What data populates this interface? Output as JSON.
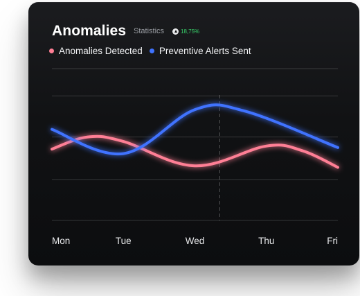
{
  "card": {
    "title": "Anomalies",
    "subtitle": "Statistics",
    "badge": {
      "icon": "trend-up-icon",
      "value": "18,75%",
      "color": "#38d26b"
    },
    "legend": [
      {
        "label": "Anomalies Detected",
        "color": "#ff7f95"
      },
      {
        "label": "Preventive Alerts Sent",
        "color": "#3f73ff"
      }
    ]
  },
  "chart_data": {
    "type": "line",
    "categories": [
      "Mon",
      "Tue",
      "Wed",
      "Thu",
      "Fri"
    ],
    "grid": true,
    "highlight_category": "Wed",
    "series": [
      {
        "name": "Anomalies Detected",
        "color": "#ff7f95",
        "x": [
          0,
          0.5,
          1,
          2,
          3,
          3.5,
          4
        ],
        "values": [
          0.47,
          0.55,
          0.52,
          0.36,
          0.49,
          0.46,
          0.35
        ]
      },
      {
        "name": "Preventive Alerts Sent",
        "color": "#3f73ff",
        "x": [
          0,
          1,
          2,
          2.7,
          4
        ],
        "values": [
          0.6,
          0.44,
          0.73,
          0.72,
          0.48
        ]
      }
    ]
  }
}
